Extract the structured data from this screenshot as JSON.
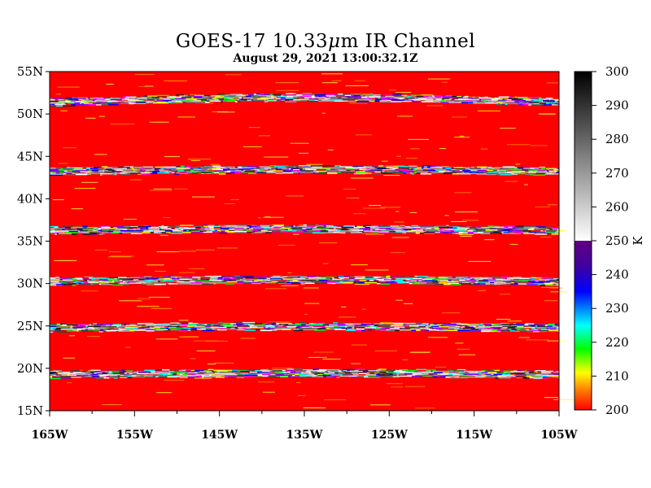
{
  "chart_data": {
    "type": "heatmap",
    "title_main": "GOES-17 10.33",
    "title_mu": "μ",
    "title_rest": "m IR Channel",
    "subtitle": "August 29,  2021 13:00:32.1Z",
    "x_ticks": [
      "165W",
      "155W",
      "145W",
      "135W",
      "125W",
      "115W",
      "105W"
    ],
    "x_range": [
      -165,
      -105
    ],
    "y_ticks": [
      "15N",
      "20N",
      "25N",
      "30N",
      "35N",
      "40N",
      "45N",
      "50N",
      "55N"
    ],
    "y_range": [
      15,
      55
    ],
    "colorbar": {
      "label": "K",
      "ticks": [
        "200",
        "210",
        "220",
        "230",
        "240",
        "250",
        "260",
        "270",
        "280",
        "290",
        "300"
      ],
      "range": [
        200,
        300
      ]
    },
    "background_value_K": 200,
    "bands_lat": [
      52,
      43.5,
      36.5,
      30.5,
      25,
      19.5
    ],
    "colors": {
      "background": "#ff0000"
    }
  }
}
